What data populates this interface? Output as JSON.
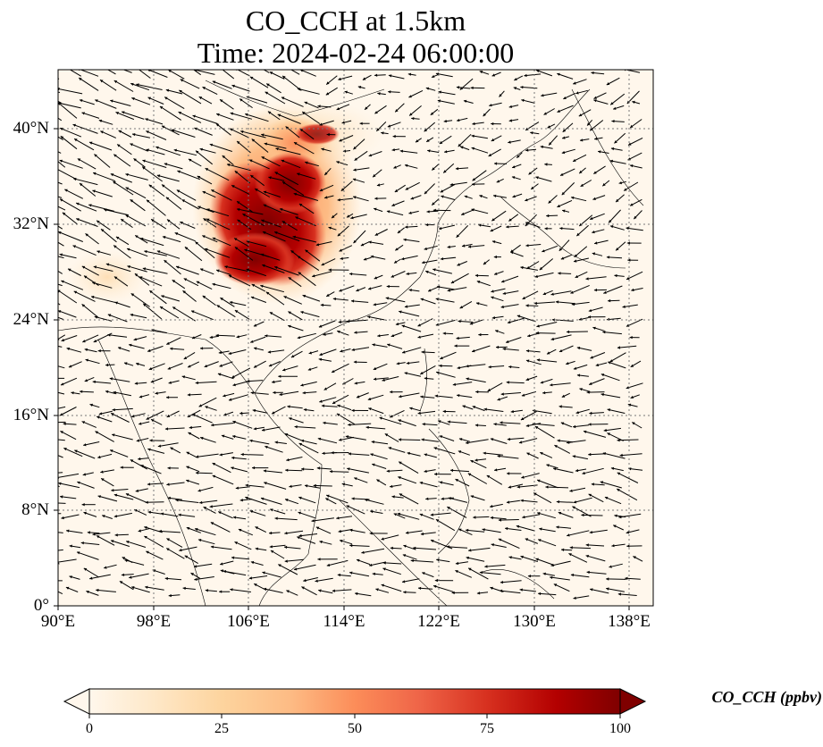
{
  "title": {
    "line1": "CO_CCH at 1.5km",
    "line2": "Time: 2024-02-24 06:00:00"
  },
  "map": {
    "lon_range": [
      90,
      140
    ],
    "lat_range": [
      0,
      44
    ],
    "lon_ticks": [
      "90°E",
      "98°E",
      "106°E",
      "114°E",
      "122°E",
      "130°E",
      "138°E"
    ],
    "lat_ticks": [
      "40°N",
      "32°N",
      "24°N",
      "16°N",
      "8°N",
      "0°"
    ],
    "gridlines": true,
    "gridline_style": "dotted"
  },
  "colorbar": {
    "label": "CO_CCH (ppbv)",
    "ticks": [
      "0",
      "25",
      "50",
      "75",
      "100"
    ],
    "colormap": "OrRd",
    "extend": "both",
    "colors": [
      "#fff7ec",
      "#fee8c8",
      "#fdd49e",
      "#fdbb84",
      "#fc8d59",
      "#ef6548",
      "#d7301f",
      "#b30000",
      "#7f0000"
    ]
  },
  "colors": {
    "ocean_background": "#fff7ec",
    "coast": "#000000",
    "wind_vector": "#000000"
  }
}
